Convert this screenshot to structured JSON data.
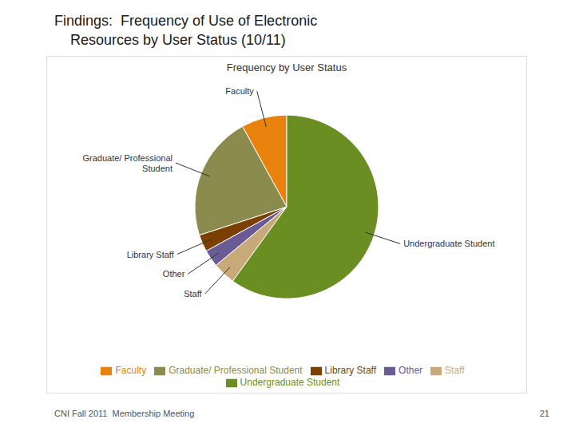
{
  "chart_data": {
    "type": "pie",
    "title": "Findings:  Frequency of Use of Electronic\n    Resources by User Status (10/11)",
    "subtitle": "Frequency by User Status",
    "categories": [
      "Faculty",
      "Graduate/ Professional Student",
      "Library Staff",
      "Other",
      "Staff",
      "Undergraduate Student"
    ],
    "values": [
      8,
      22,
      3,
      3,
      4,
      60
    ],
    "colors": [
      "#E8820C",
      "#8B8B4E",
      "#7B3F00",
      "#6B5B95",
      "#C8A97A",
      "#6B8E23"
    ],
    "slice_labels": [
      "Faculty",
      "Graduate/ Professional\nStudent",
      "Library Staff",
      "Other",
      "Staff",
      "Undergraduate Student"
    ],
    "annotations": [
      "CNI Fall 2011  Membership Meeting",
      "21"
    ],
    "legend": "bottom"
  }
}
